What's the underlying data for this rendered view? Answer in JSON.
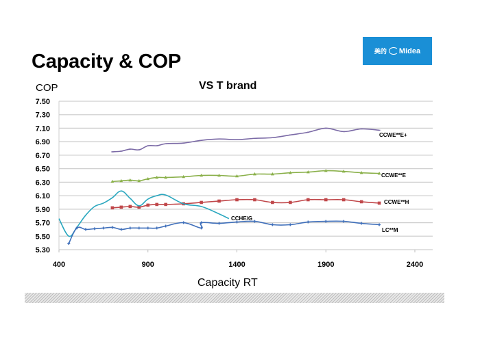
{
  "slide": {
    "title": "Capacity & COP",
    "logo": {
      "chinese": "美的",
      "brand": "Midea",
      "color": "#1a8fd6"
    }
  },
  "chart_data": {
    "type": "line",
    "title": "VS  T brand",
    "xlabel": "Capacity RT",
    "ylabel": "COP",
    "xlim": [
      400,
      2500
    ],
    "ylim": [
      5.3,
      7.5
    ],
    "x_ticks": [
      400,
      900,
      1400,
      1900,
      2400
    ],
    "x_tick_labels": [
      "400",
      "900",
      "1400",
      "1900",
      "2400"
    ],
    "y_ticks": [
      5.3,
      5.5,
      5.7,
      5.9,
      6.1,
      6.3,
      6.5,
      6.7,
      6.9,
      7.1,
      7.3,
      7.5
    ],
    "y_tick_labels": [
      "5.30",
      "5.50",
      "5.70",
      "5.90",
      "6.10",
      "6.30",
      "6.50",
      "6.70",
      "6.90",
      "7.10",
      "7.30",
      "7.50"
    ],
    "grid": "horizontal",
    "series": [
      {
        "name": "CCWE**E+",
        "color": "#7b6aa6",
        "marker": "dash",
        "x": [
          700,
          750,
          800,
          850,
          900,
          950,
          1000,
          1100,
          1200,
          1300,
          1400,
          1500,
          1600,
          1700,
          1800,
          1900,
          2000,
          2100,
          2200
        ],
        "y": [
          6.75,
          6.76,
          6.79,
          6.78,
          6.84,
          6.84,
          6.87,
          6.88,
          6.92,
          6.94,
          6.93,
          6.95,
          6.96,
          7.0,
          7.04,
          7.1,
          7.05,
          7.09,
          7.07
        ]
      },
      {
        "name": "CCWE**E",
        "color": "#8ab04a",
        "marker": "triangle",
        "x": [
          700,
          750,
          800,
          850,
          900,
          950,
          1000,
          1100,
          1200,
          1300,
          1400,
          1500,
          1600,
          1700,
          1800,
          1900,
          2000,
          2100,
          2200
        ],
        "y": [
          6.31,
          6.32,
          6.33,
          6.32,
          6.35,
          6.37,
          6.37,
          6.38,
          6.4,
          6.4,
          6.39,
          6.42,
          6.42,
          6.44,
          6.45,
          6.47,
          6.46,
          6.44,
          6.43
        ]
      },
      {
        "name": "CCWE**H",
        "color": "#c0474a",
        "marker": "square",
        "x": [
          700,
          750,
          800,
          850,
          900,
          950,
          1000,
          1100,
          1200,
          1300,
          1400,
          1500,
          1600,
          1700,
          1800,
          1900,
          2000,
          2100,
          2200
        ],
        "y": [
          5.92,
          5.93,
          5.94,
          5.93,
          5.96,
          5.97,
          5.97,
          5.98,
          6.0,
          6.02,
          6.04,
          6.04,
          6.0,
          6.0,
          6.04,
          6.04,
          6.04,
          6.01,
          5.99
        ]
      },
      {
        "name": "CCHE/G",
        "color": "#2aa7bf",
        "marker": "none",
        "x": [
          400,
          455,
          500,
          550,
          600,
          650,
          700,
          750,
          800,
          850,
          900,
          950,
          1000,
          1100,
          1200,
          1300,
          1355
        ],
        "y": [
          5.76,
          5.5,
          5.63,
          5.81,
          5.94,
          5.99,
          6.07,
          6.17,
          6.06,
          5.95,
          6.05,
          6.1,
          6.11,
          5.98,
          5.94,
          5.83,
          5.76
        ]
      },
      {
        "name": "LC**M",
        "color": "#3f6fba",
        "marker": "plus",
        "x": [
          455,
          500,
          550,
          600,
          650,
          700,
          750,
          800,
          850,
          900,
          950,
          1000,
          1100,
          1200,
          1200,
          1300,
          1400,
          1500,
          1600,
          1700,
          1800,
          1900,
          2000,
          2100,
          2200
        ],
        "y": [
          5.39,
          5.62,
          5.6,
          5.61,
          5.62,
          5.63,
          5.6,
          5.62,
          5.62,
          5.62,
          5.62,
          5.65,
          5.7,
          5.62,
          5.7,
          5.69,
          5.71,
          5.72,
          5.67,
          5.67,
          5.71,
          5.72,
          5.72,
          5.69,
          5.67
        ]
      }
    ]
  }
}
